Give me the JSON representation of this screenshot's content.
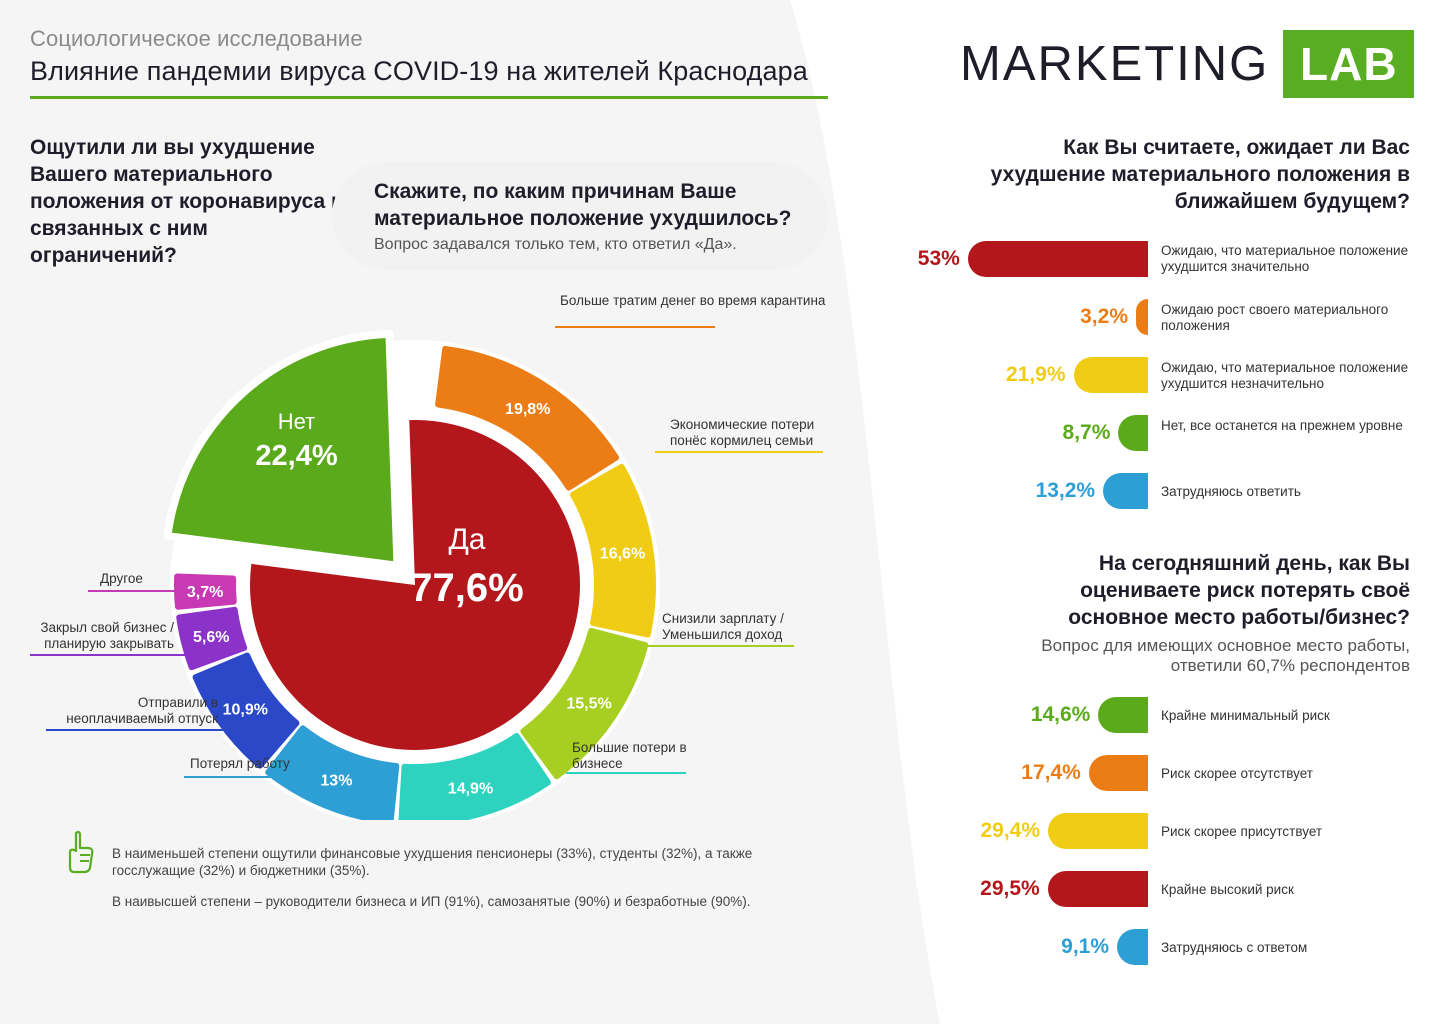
{
  "header": {
    "subtitle": "Социологическое исследование",
    "title": "Влияние пандемии вируса COVID-19 на жителей Краснодара"
  },
  "logo": {
    "text": "MARKETING",
    "box": "LAB"
  },
  "left_question": "Ощутили ли вы ухудшение Вашего материального положения от коронавируса и связанных с ним ограничений?",
  "reason_question": {
    "title": "Скажите, по каким причинам Ваше материальное положение ухудшилось?",
    "note": "Вопрос задавался только тем, кто ответил «Да»."
  },
  "colors": {
    "red": "#b3171b",
    "green": "#5aaa1c",
    "orange": "#ec7d16",
    "yellow": "#f1cc14",
    "lime": "#a6cf22",
    "teal": "#2ed3bf",
    "blue": "#2e9fd5",
    "navy": "#2a48c8",
    "purple": "#8b33c8",
    "magenta": "#c83ab4",
    "accent": "#58ad22"
  },
  "chart_data": [
    {
      "type": "pie",
      "title": "Ощутили ли вы ухудшение Вашего материального положения от коронавируса и связанных с ним ограничений?",
      "slices": [
        {
          "label": "Да",
          "value": 77.6,
          "display": "77,6%",
          "color": "#b3171b"
        },
        {
          "label": "Нет",
          "value": 22.4,
          "display": "22,4%",
          "color": "#5aaa1c"
        }
      ]
    },
    {
      "type": "pie",
      "title": "Скажите, по каким причинам Ваше материальное положение ухудшилось?",
      "slices": [
        {
          "label": "Больше тратим денег во время карантина",
          "value": 19.8,
          "display": "19,8%",
          "color": "#ec7d16"
        },
        {
          "label": "Экономические потери понёс кормилец семьи",
          "value": 16.6,
          "display": "16,6%",
          "color": "#f1cc14"
        },
        {
          "label": "Снизили зарплату / Уменьшился доход",
          "value": 15.5,
          "display": "15,5%",
          "color": "#a6cf22"
        },
        {
          "label": "Большие потери в бизнесе",
          "value": 14.9,
          "display": "14,9%",
          "color": "#2ed3bf"
        },
        {
          "label": "Потерял работу",
          "value": 13,
          "display": "13%",
          "color": "#2e9fd5"
        },
        {
          "label": "Отправили в неоплачиваемый отпуск",
          "value": 10.9,
          "display": "10,9%",
          "color": "#2a48c8"
        },
        {
          "label": "Закрыл свой бизнес / планирую закрывать",
          "value": 5.6,
          "display": "5,6%",
          "color": "#8b33c8"
        },
        {
          "label": "Другое",
          "value": 3.7,
          "display": "3,7%",
          "color": "#c83ab4"
        }
      ]
    },
    {
      "type": "bar",
      "title": "Как Вы считаете, ожидает ли Вас ухудшение материального положения в ближайшем будущем?",
      "categories": [
        "Ожидаю, что материальное положение ухудшится значительно",
        "Ожидаю рост своего материального положения",
        "Ожидаю, что материальное положение ухудшится незначительно",
        "Нет, все останется на прежнем уровне",
        "Затрудняюсь ответить"
      ],
      "values": [
        53,
        3.2,
        21.9,
        8.7,
        13.2
      ],
      "display": [
        "53%",
        "3,2%",
        "21,9%",
        "8,7%",
        "13,2%"
      ],
      "colors": [
        "#b3171b",
        "#ec7d16",
        "#f1cc14",
        "#5aaa1c",
        "#2e9fd5"
      ]
    },
    {
      "type": "bar",
      "title": "На сегодняшний день, как Вы оцениваете риск потерять своё основное место работы/бизнес?",
      "subtitle": "Вопрос для имеющих основное место работы, ответили 60,7% респондентов",
      "categories": [
        "Крайне минимальный риск",
        "Риск скорее отсутствует",
        "Риск скорее присутствует",
        "Крайне высокий риск",
        "Затрудняюсь с ответом"
      ],
      "values": [
        14.6,
        17.4,
        29.4,
        29.5,
        9.1
      ],
      "display": [
        "14,6%",
        "17,4%",
        "29,4%",
        "29,5%",
        "9,1%"
      ],
      "colors": [
        "#5aaa1c",
        "#ec7d16",
        "#f1cc14",
        "#b3171b",
        "#2e9fd5"
      ]
    }
  ],
  "right_q1": {
    "title": "Как Вы считаете, ожидает ли Вас ухудшение материального положения в ближайшем будущем?"
  },
  "right_q2": {
    "title": "На сегодняшний день, как Вы оцениваете риск потерять своё основное место работы/бизнес?",
    "sub": "Вопрос для имеющих основное место работы, ответили 60,7% респондентов"
  },
  "notes": {
    "icon": "hand-icon",
    "n1": "В наименьшей степени ощутили финансовые ухудшения пенсионеры (33%), студенты (32%), а также госслужащие (32%) и бюджетники (35%).",
    "n2": "В наивысшей степени – руководители бизнеса и ИП (91%), самозанятые (90%) и безработные (90%)."
  }
}
